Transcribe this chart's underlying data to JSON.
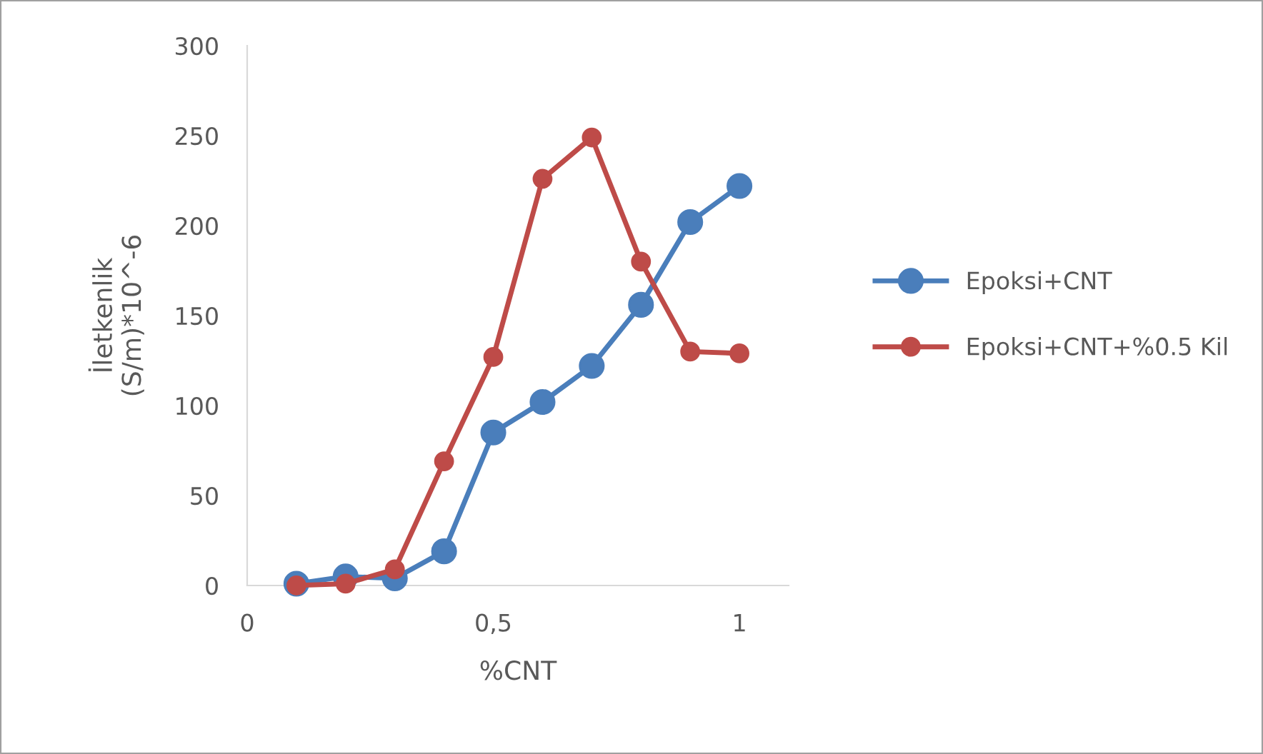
{
  "chart_data": {
    "type": "line",
    "xlabel": "%CNT",
    "ylabel": "İletkenlik\n(S/m)*10^-6",
    "x": [
      0.1,
      0.2,
      0.3,
      0.4,
      0.5,
      0.6,
      0.7,
      0.8,
      0.9,
      1.0
    ],
    "series": [
      {
        "name": "Epoksi+CNT",
        "color": "#4a7ebb",
        "values": [
          1,
          5,
          4,
          19,
          85,
          102,
          122,
          156,
          202,
          222
        ]
      },
      {
        "name": "Epoksi+CNT+%0.5 Kil",
        "color": "#be4b48",
        "values": [
          0,
          1,
          9,
          69,
          127,
          226,
          249,
          180,
          130,
          129
        ]
      }
    ],
    "xlim": [
      0,
      1.1
    ],
    "xticks": [
      0,
      {
        "value": 0.5,
        "label": "0,5"
      },
      1
    ],
    "ylim": [
      0,
      300
    ],
    "yticks": [
      0,
      50,
      100,
      150,
      200,
      250,
      300
    ],
    "grid": false,
    "legend": "right",
    "marker": "circle",
    "line_style": "solid"
  }
}
